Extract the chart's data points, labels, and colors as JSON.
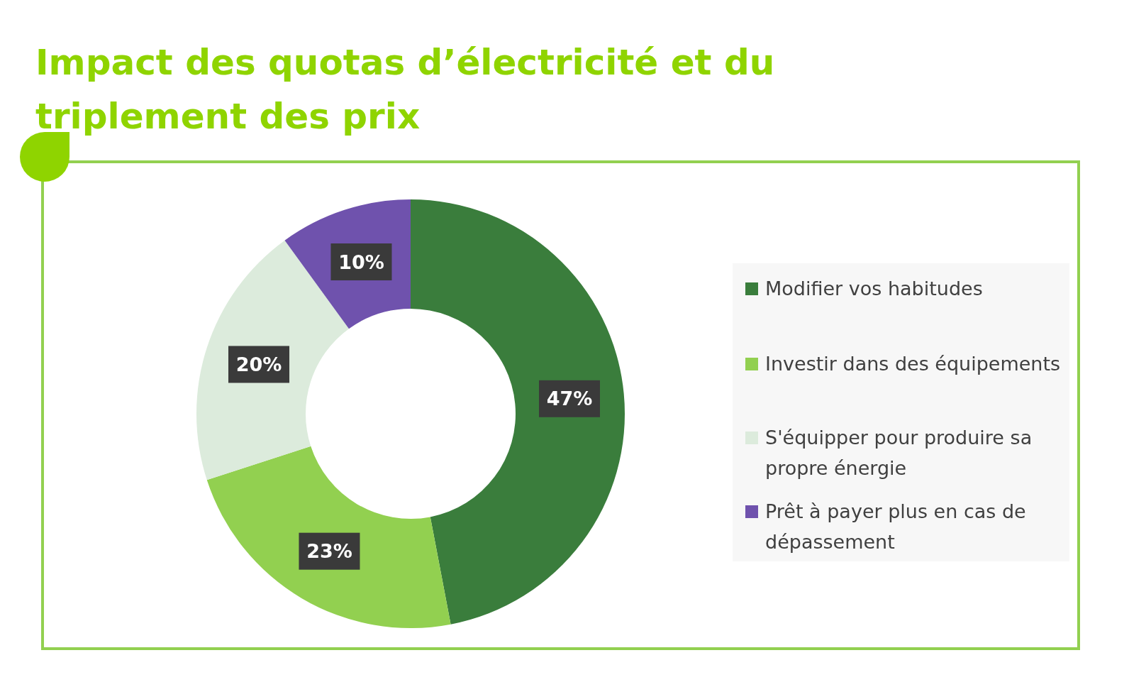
{
  "chart_data": {
    "type": "donut",
    "title": "Impact des quotas d’électricité et du triplement des prix",
    "categories": [
      "Modifier vos habitudes",
      "Investir dans des équipements",
      "S'équipper pour produire sa propre énergie",
      "Prêt à payer plus en cas de dépassement"
    ],
    "values": [
      47,
      23,
      20,
      10
    ],
    "colors": [
      "#3a7d3c",
      "#92d050",
      "#dcebdc",
      "#6f52ad"
    ],
    "value_labels": [
      "47%",
      "23%",
      "20%",
      "10%"
    ],
    "legend": "right"
  }
}
